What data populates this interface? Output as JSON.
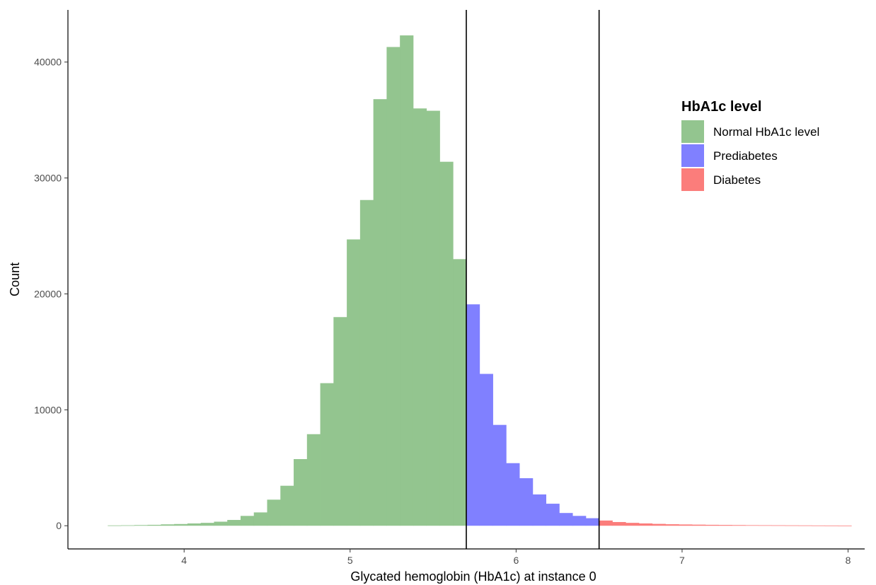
{
  "chart_data": {
    "type": "bar",
    "xlabel": "Glycated hemoglobin (HbA1c) at instance 0",
    "ylabel": "Count",
    "xlim": [
      3.3,
      8.1
    ],
    "ylim": [
      -2000,
      44500
    ],
    "x_ticks": [
      4,
      5,
      6,
      7,
      8
    ],
    "y_ticks": [
      0,
      10000,
      20000,
      30000,
      40000
    ],
    "x_tick_labels": [
      "4",
      "5",
      "6",
      "7",
      "8"
    ],
    "y_tick_labels": [
      "0",
      "10000",
      "20000",
      "30000",
      "40000"
    ],
    "grid": false,
    "legend_position": "top-right",
    "legend": {
      "title": "HbA1c level",
      "entries": [
        {
          "label": "Normal HbA1c level",
          "color": "#93c58f"
        },
        {
          "label": "Prediabetes",
          "color": "#8080ff"
        },
        {
          "label": "Diabetes",
          "color": "#fb7d7b"
        }
      ]
    },
    "reference_lines_x": [
      5.7,
      6.5
    ],
    "bin_width": 0.08,
    "series": [
      {
        "name": "Normal HbA1c level",
        "color": "#93c58f",
        "bins_start": [
          3.54,
          3.62,
          3.7,
          3.78,
          3.86,
          3.94,
          4.02,
          4.1,
          4.18,
          4.26,
          4.34,
          4.42,
          4.5,
          4.58,
          4.66,
          4.74,
          4.82,
          4.9,
          4.98,
          5.06,
          5.14,
          5.22,
          5.3,
          5.38,
          5.46,
          5.54,
          5.62
        ],
        "values": [
          30,
          40,
          60,
          80,
          120,
          150,
          200,
          250,
          350,
          500,
          850,
          1150,
          2250,
          3450,
          5750,
          7900,
          12300,
          18000,
          24700,
          28100,
          36800,
          41300,
          42300,
          36000,
          35800,
          31400,
          23000
        ]
      },
      {
        "name": "Prediabetes",
        "color": "#8080ff",
        "bins_start": [
          5.7,
          5.78,
          5.86,
          5.94,
          6.02,
          6.1,
          6.18,
          6.26,
          6.34,
          6.42
        ],
        "values": [
          19100,
          13100,
          8700,
          5400,
          4100,
          2700,
          1900,
          1100,
          850,
          650
        ]
      },
      {
        "name": "Diabetes",
        "color": "#fb7d7b",
        "bins_start": [
          6.5,
          6.58,
          6.66,
          6.74,
          6.82,
          6.9,
          6.98,
          7.06,
          7.14,
          7.22,
          7.3,
          7.38,
          7.46,
          7.54,
          7.62,
          7.7,
          7.78,
          7.86,
          7.94
        ],
        "values": [
          450,
          320,
          250,
          200,
          160,
          130,
          110,
          95,
          80,
          70,
          60,
          50,
          45,
          40,
          35,
          30,
          25,
          20,
          15
        ]
      }
    ]
  }
}
